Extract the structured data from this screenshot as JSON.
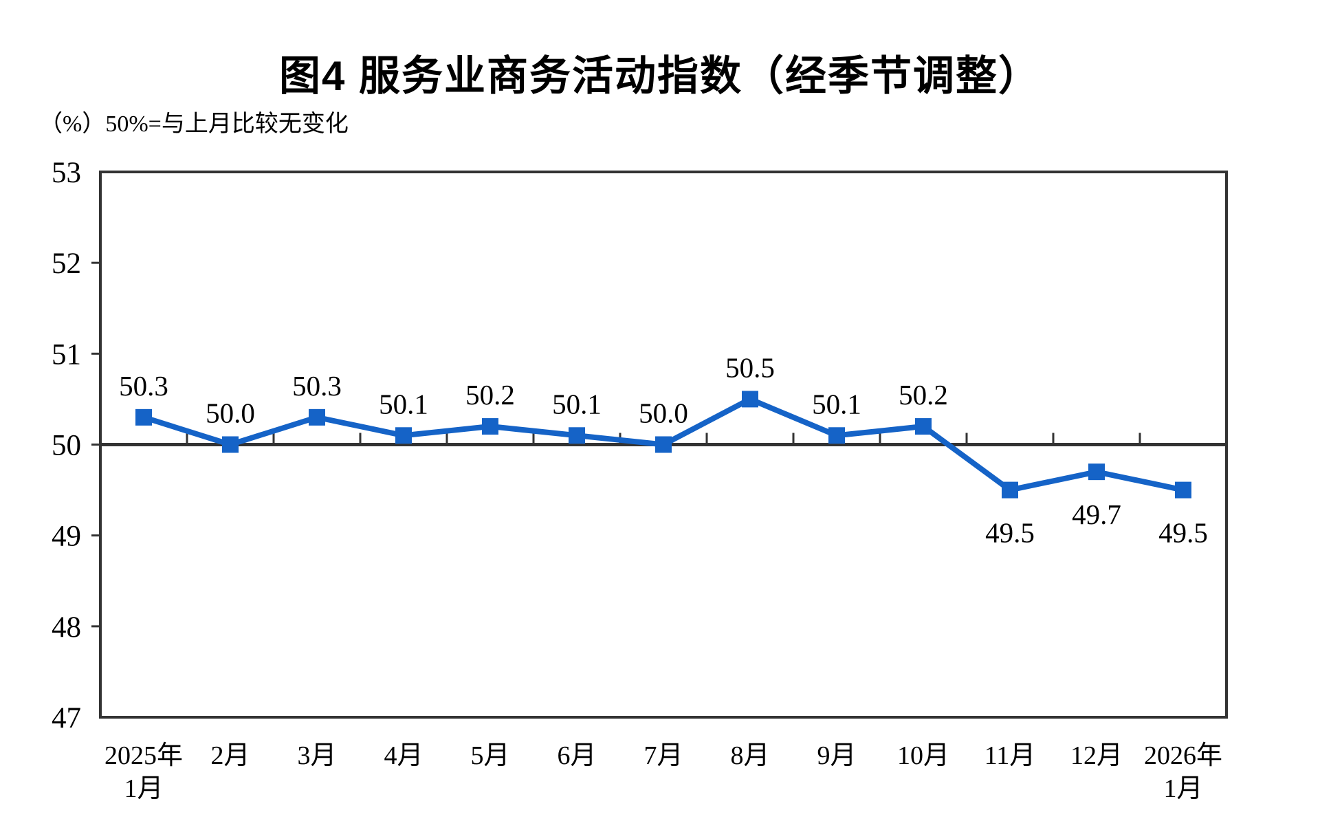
{
  "figure": {
    "title": "图4 服务业商务活动指数（经季节调整）",
    "unit_note": "（%）50%=与上月比较无变化"
  },
  "colors": {
    "line": "#1563c7",
    "axis": "#333333",
    "text": "#000000",
    "background": "#ffffff"
  },
  "chart_data": {
    "type": "line",
    "title": "图4 服务业商务活动指数（经季节调整）",
    "subtitle": "（%）50%=与上月比较无变化",
    "xlabel": "",
    "ylabel": "%",
    "ylim": [
      47,
      53
    ],
    "yticks": [
      47,
      48,
      49,
      50,
      51,
      52,
      53
    ],
    "reference_line": 50,
    "grid": false,
    "legend": "none",
    "marker": "square",
    "categories": [
      [
        "2025年",
        "1月"
      ],
      [
        "2月"
      ],
      [
        "3月"
      ],
      [
        "4月"
      ],
      [
        "5月"
      ],
      [
        "6月"
      ],
      [
        "7月"
      ],
      [
        "8月"
      ],
      [
        "9月"
      ],
      [
        "10月"
      ],
      [
        "11月"
      ],
      [
        "12月"
      ],
      [
        "2026年",
        "1月"
      ]
    ],
    "series": [
      {
        "name": "服务业商务活动指数",
        "values": [
          50.3,
          50.0,
          50.3,
          50.1,
          50.2,
          50.1,
          50.0,
          50.5,
          50.1,
          50.2,
          49.5,
          49.7,
          49.5
        ]
      }
    ]
  }
}
